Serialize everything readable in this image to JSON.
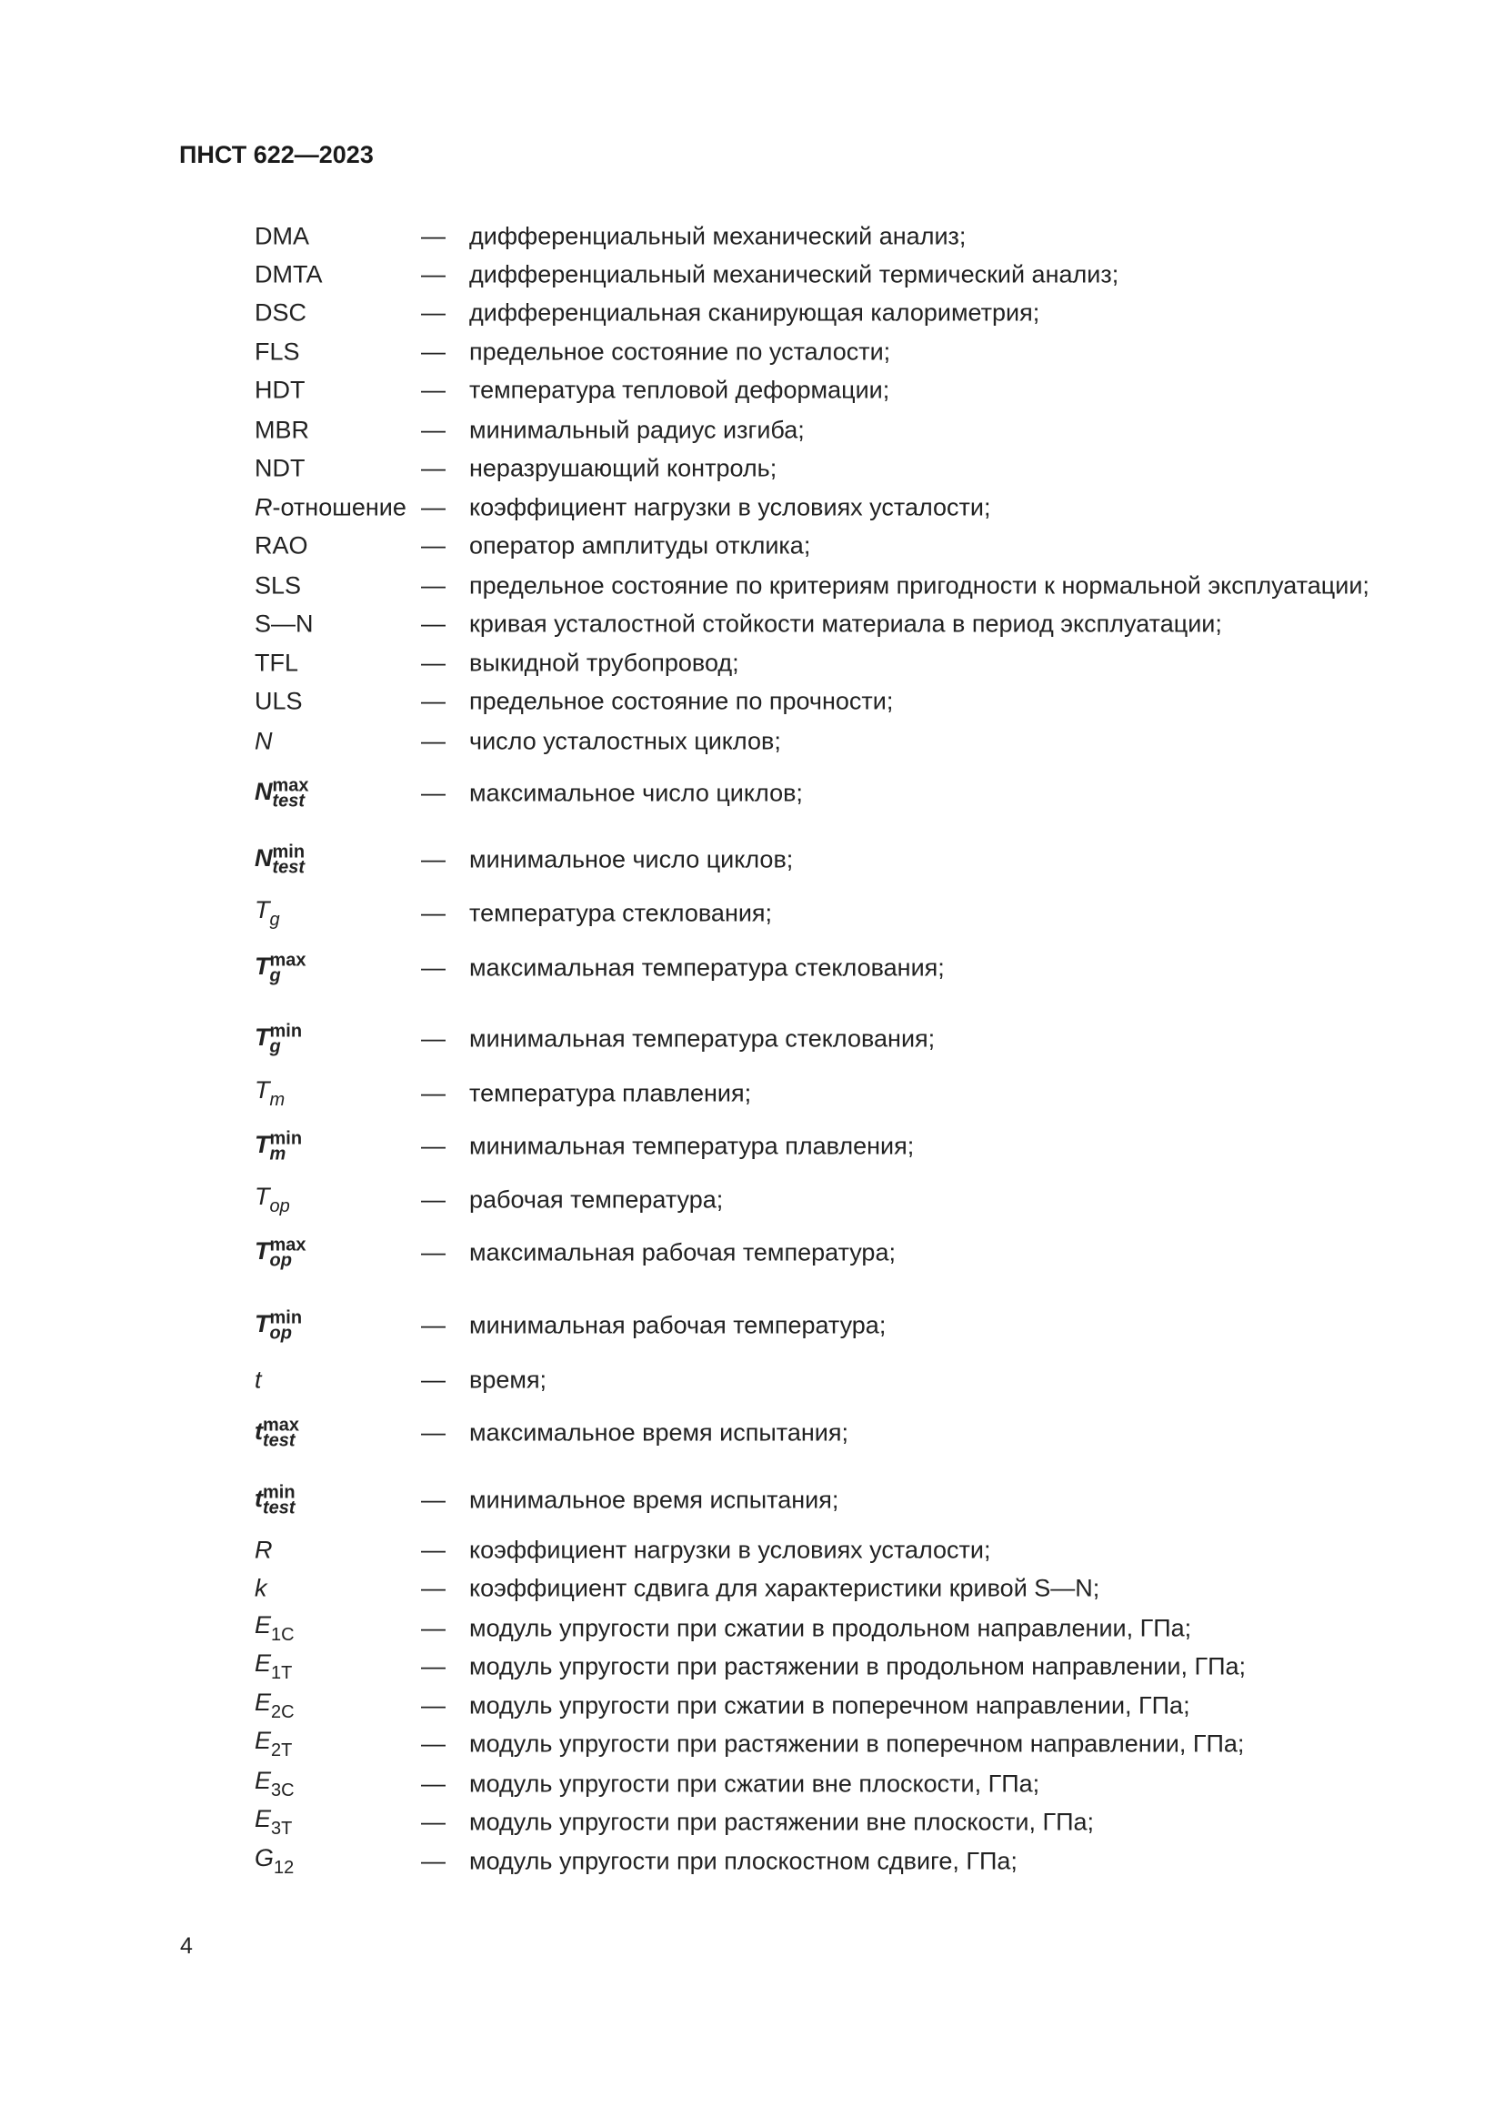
{
  "header": {
    "title": "ПНСТ 622—2023"
  },
  "dash": "—",
  "page_number": "4",
  "rows": [
    {
      "sym": "DMA",
      "style": "plain",
      "desc": "дифференциальный механический анализ;"
    },
    {
      "sym": "DMTA",
      "style": "plain",
      "desc": "дифференциальный механический термический анализ;"
    },
    {
      "sym": "DSC",
      "style": "plain",
      "desc": "дифференциальная сканирующая калориметрия;"
    },
    {
      "sym": "FLS",
      "style": "plain",
      "desc": "предельное состояние по усталости;"
    },
    {
      "sym": "HDT",
      "style": "plain",
      "desc": "температура тепловой деформации;"
    },
    {
      "sym": "MBR",
      "style": "plain",
      "desc": "минимальный радиус изгиба;"
    },
    {
      "sym": "NDT",
      "style": "plain",
      "desc": "неразрушающий контроль;"
    },
    {
      "sym": "R",
      "suffix": "-отношение",
      "style": "italic",
      "desc": "коэффициент нагрузки в условиях усталости;"
    },
    {
      "sym": "RAO",
      "style": "plain",
      "desc": "оператор амплитуды отклика;"
    },
    {
      "sym": "SLS",
      "style": "plain",
      "desc": "предельное состояние по критериям пригодности к нормальной эксплуатации;"
    },
    {
      "sym": "S—N",
      "style": "plain",
      "desc": "кривая усталостной стойкости материала в период эксплуатации;"
    },
    {
      "sym": "TFL",
      "style": "plain",
      "desc": "выкидной трубопровод;"
    },
    {
      "sym": "ULS",
      "style": "plain",
      "desc": "предельное состояние по прочности;"
    },
    {
      "sym": "N",
      "style": "italic",
      "desc": "число усталостных циклов;"
    },
    {
      "sym": "N",
      "sup": "max",
      "sub": "test",
      "style": "bold-italic",
      "desc": "максимальное число циклов;"
    },
    {
      "sym": "N",
      "sup": "min",
      "sub": "test",
      "style": "bold-italic",
      "desc": "минимальное число циклов;"
    },
    {
      "sym": "T",
      "sub": "g",
      "style": "italic",
      "desc": "температура стеклования;"
    },
    {
      "sym": "T",
      "sup": "max",
      "sub": "g",
      "style": "bold-italic",
      "desc": "максимальная температура стеклования;"
    },
    {
      "sym": "T",
      "sup": "min",
      "sub": "g",
      "style": "bold-italic",
      "desc": "минимальная температура стеклования;"
    },
    {
      "sym": "T",
      "sub": "m",
      "style": "italic",
      "desc": "температура плавления;"
    },
    {
      "sym": "T",
      "sup": "min",
      "sub": "m",
      "style": "bold-italic",
      "desc": "минимальная температура плавления;"
    },
    {
      "sym": "T",
      "sub": "op",
      "style": "italic",
      "desc": "рабочая температура;"
    },
    {
      "sym": "T",
      "sup": "max",
      "sub": "op",
      "style": "bold-italic",
      "desc": "максимальная рабочая температура;"
    },
    {
      "sym": "T",
      "sup": "min",
      "sub": "op",
      "style": "bold-italic",
      "desc": "минимальная рабочая температура;"
    },
    {
      "sym": "t",
      "style": "italic",
      "desc": "время;"
    },
    {
      "sym": "t",
      "sup": "max",
      "sub": "test",
      "style": "bold-italic",
      "desc": "максимальное время испытания;"
    },
    {
      "sym": "t",
      "sup": "min",
      "sub": "test",
      "style": "bold-italic",
      "desc": "минимальное время испытания;"
    },
    {
      "sym": "R",
      "style": "italic",
      "desc": "коэффициент нагрузки в условиях усталости;"
    },
    {
      "sym": "k",
      "style": "italic",
      "desc": "коэффициент сдвига для характеристики кривой S—N;"
    },
    {
      "sym": "E",
      "sub": "1C",
      "style": "italic",
      "desc": "модуль упругости при сжатии в продольном направлении, ГПа;"
    },
    {
      "sym": "E",
      "sub": "1T",
      "style": "italic",
      "desc": "модуль упругости при растяжении в продольном направлении, ГПа;"
    },
    {
      "sym": "E",
      "sub": "2C",
      "style": "italic",
      "desc": "модуль упругости при сжатии в поперечном направлении, ГПа;"
    },
    {
      "sym": "E",
      "sub": "2T",
      "style": "italic",
      "desc": "модуль упругости при растяжении в поперечном направлении, ГПа;"
    },
    {
      "sym": "E",
      "sub": "3C",
      "style": "italic",
      "desc": "модуль упругости при сжатии вне плоскости, ГПа;"
    },
    {
      "sym": "E",
      "sub": "3T",
      "style": "italic",
      "desc": "модуль упругости при растяжении вне плоскости, ГПа;"
    },
    {
      "sym": "G",
      "sub": "12",
      "style": "italic",
      "desc": "модуль упругости при плоскостном сдвиге, ГПа;"
    }
  ]
}
